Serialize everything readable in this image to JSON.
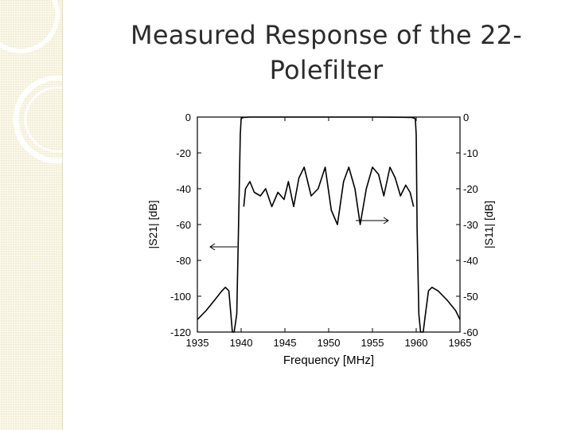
{
  "slide": {
    "title_line1": "Measured Response of the 22-",
    "title_line2": "Polefilter"
  },
  "chart_data": {
    "type": "line",
    "xlabel": "Frequency [MHz]",
    "ylabel_left": "|S21| [dB]",
    "ylabel_right": "|S11| [dB]",
    "xlim": [
      1935,
      1965
    ],
    "ylim_left": [
      -120,
      0
    ],
    "ylim_right": [
      -60,
      0
    ],
    "x_ticks": [
      "1935",
      "1940",
      "1945",
      "1950",
      "1955",
      "1960",
      "1965"
    ],
    "y_ticks_left": [
      "0",
      "-20",
      "-40",
      "-60",
      "-80",
      "-100",
      "-120"
    ],
    "y_ticks_right": [
      "0",
      "-10",
      "-20",
      "-30",
      "-40",
      "-50",
      "-60"
    ],
    "grid": false,
    "series": [
      {
        "axis": "left",
        "x": [
          1935,
          1936,
          1937,
          1937.8,
          1938.2,
          1938.6,
          1939.0,
          1939.2,
          1939.5,
          1939.7,
          1939.9,
          1940.0,
          1940.1,
          1940.3,
          1941,
          1945,
          1950,
          1955,
          1959.4,
          1959.7,
          1959.9,
          1960.0,
          1960.1,
          1960.3,
          1960.5,
          1960.8,
          1961.0,
          1961.4,
          1961.8,
          1962.5,
          1963.5,
          1964.5,
          1965
        ],
        "values": [
          -113,
          -108,
          -102,
          -97,
          -95,
          -97,
          -120,
          -120,
          -110,
          -62,
          -10,
          -1,
          -0.5,
          -0.2,
          0,
          0,
          0,
          0,
          -0.2,
          -0.5,
          -1,
          -10,
          -62,
          -110,
          -120,
          -120,
          -112,
          -97,
          -95,
          -97,
          -102,
          -108,
          -113
        ]
      },
      {
        "axis": "right",
        "x": [
          1940.3,
          1940.5,
          1941.0,
          1941.5,
          1942.2,
          1942.8,
          1943.5,
          1944.2,
          1944.9,
          1945.4,
          1946.0,
          1946.6,
          1947.2,
          1948.0,
          1948.8,
          1949.6,
          1950.3,
          1951.0,
          1951.7,
          1952.3,
          1953.0,
          1953.6,
          1954.3,
          1955.0,
          1955.7,
          1956.3,
          1957.0,
          1957.6,
          1958.2,
          1958.8,
          1959.3,
          1959.7
        ],
        "values": [
          -25,
          -20,
          -18,
          -21,
          -22,
          -20,
          -25,
          -21,
          -23,
          -18,
          -25,
          -17,
          -14,
          -22,
          -20,
          -14,
          -26,
          -30,
          -18,
          -14,
          -20,
          -30,
          -20,
          -14,
          -16,
          -22,
          -14,
          -17,
          -22,
          -19,
          -21,
          -25
        ]
      }
    ]
  }
}
